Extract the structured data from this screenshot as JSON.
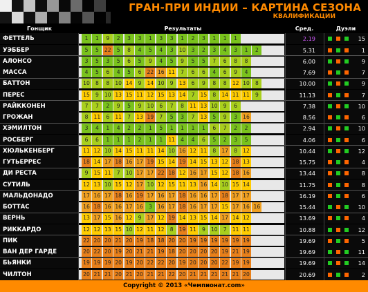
{
  "header": {
    "title": "ГРАН-ПРИ ИНДИИ – КАРТИНА СЕЗОНА",
    "subtitle": "КВАЛИФИКАЦИИ"
  },
  "columns": {
    "driver": "Гонщик",
    "results": "Результаты",
    "avg": "Сред.",
    "duels": "Дуэли"
  },
  "footer": {
    "copyright": "Copyright © 2013 «Чемпионат.com»"
  },
  "colors": {
    "position_scale": [
      "#79c21c",
      "#a9cf1d",
      "#ffcc00",
      "#f0a020",
      "#e8801a"
    ],
    "pole_avg": "#d35bff",
    "duel_win": "#22cc22",
    "duel_loss": "#ff6600",
    "footer_bg": "#ff8a00"
  },
  "chart_data": {
    "type": "table",
    "races_total": 19,
    "drivers": [
      {
        "name": "ФЕТТЕЛЬ",
        "results": [
          1,
          1,
          9,
          2,
          3,
          3,
          1,
          3,
          3,
          1,
          2,
          3,
          1,
          1,
          1
        ],
        "avg": "2.19",
        "duels_wins": "15",
        "pole": true
      },
      {
        "name": "УЭББЕР",
        "results": [
          5,
          5,
          22,
          5,
          8,
          4,
          5,
          4,
          3,
          10,
          3,
          2,
          3,
          4,
          3,
          1,
          2
        ],
        "avg": "5.31",
        "duels_wins": "1",
        "pole": false
      },
      {
        "name": "АЛОНСО",
        "results": [
          3,
          5,
          3,
          5,
          6,
          5,
          9,
          4,
          5,
          9,
          5,
          5,
          7,
          6,
          8,
          8
        ],
        "avg": "6.00",
        "duels_wins": "9",
        "pole": false
      },
      {
        "name": "МАССА",
        "results": [
          4,
          5,
          6,
          4,
          5,
          6,
          22,
          16,
          11,
          7,
          6,
          6,
          4,
          6,
          9,
          4
        ],
        "avg": "7.69",
        "duels_wins": "7",
        "pole": false
      },
      {
        "name": "БАТТОН",
        "results": [
          10,
          8,
          8,
          10,
          14,
          9,
          14,
          10,
          9,
          13,
          6,
          9,
          8,
          8,
          12,
          10,
          8
        ],
        "avg": "10.00",
        "duels_wins": "9",
        "pole": false
      },
      {
        "name": "ПЕРЕС",
        "results": [
          15,
          9,
          10,
          13,
          15,
          11,
          12,
          15,
          13,
          14,
          7,
          15,
          8,
          14,
          11,
          11,
          9
        ],
        "avg": "11.13",
        "duels_wins": "7",
        "pole": false
      },
      {
        "name": "РАЙККОНЕН",
        "results": [
          7,
          7,
          2,
          9,
          5,
          9,
          10,
          6,
          7,
          8,
          11,
          13,
          10,
          9,
          6
        ],
        "avg": "7.38",
        "duels_wins": "10",
        "pole": false
      },
      {
        "name": "ГРОЖАН",
        "results": [
          8,
          11,
          6,
          11,
          7,
          13,
          19,
          7,
          5,
          3,
          7,
          13,
          5,
          9,
          3,
          16
        ],
        "avg": "8.56",
        "duels_wins": "6",
        "pole": false
      },
      {
        "name": "ХЭМИЛТОН",
        "results": [
          3,
          4,
          1,
          4,
          2,
          2,
          1,
          5,
          1,
          1,
          1,
          1,
          6,
          7,
          2,
          2
        ],
        "avg": "2.94",
        "duels_wins": "10",
        "pole": false
      },
      {
        "name": "РОСБЕРГ",
        "results": [
          6,
          6,
          1,
          1,
          1,
          2,
          1,
          1,
          11,
          4,
          4,
          6,
          5,
          2,
          3,
          5
        ],
        "avg": "4.06",
        "duels_wins": "6",
        "pole": false
      },
      {
        "name": "ХЮЛЬКЕНБЕРГ",
        "results": [
          11,
          12,
          10,
          14,
          15,
          11,
          11,
          14,
          10,
          16,
          12,
          11,
          8,
          17,
          8,
          12
        ],
        "avg": "10.44",
        "duels_wins": "12",
        "pole": false
      },
      {
        "name": "ГУТЬЕРРЕС",
        "results": [
          18,
          14,
          17,
          18,
          16,
          17,
          19,
          15,
          14,
          19,
          14,
          15,
          13,
          12,
          18,
          13
        ],
        "avg": "15.75",
        "duels_wins": "4",
        "pole": false
      },
      {
        "name": "ДИ РЕСТА",
        "results": [
          9,
          15,
          11,
          7,
          10,
          17,
          17,
          22,
          18,
          12,
          16,
          17,
          15,
          12,
          18,
          16
        ],
        "avg": "13.44",
        "duels_wins": "8",
        "pole": false
      },
      {
        "name": "СУТИЛЬ",
        "results": [
          12,
          13,
          10,
          15,
          12,
          17,
          10,
          12,
          15,
          11,
          13,
          16,
          14,
          10,
          15,
          14
        ],
        "avg": "11.75",
        "duels_wins": "8",
        "pole": false
      },
      {
        "name": "МАЛЬДОНАДО",
        "results": [
          17,
          16,
          17,
          18,
          16,
          19,
          17,
          16,
          17,
          18,
          16,
          16,
          17,
          18,
          17,
          17
        ],
        "avg": "16.19",
        "duels_wins": "6",
        "pole": false
      },
      {
        "name": "БОТТАС",
        "results": [
          16,
          18,
          16,
          16,
          17,
          16,
          3,
          16,
          17,
          18,
          16,
          17,
          17,
          15,
          17,
          16,
          16
        ],
        "avg": "15.44",
        "duels_wins": "10",
        "pole": false
      },
      {
        "name": "ВЕРНЬ",
        "results": [
          13,
          17,
          15,
          16,
          12,
          9,
          17,
          12,
          19,
          14,
          13,
          15,
          14,
          17,
          14,
          12
        ],
        "avg": "13.69",
        "duels_wins": "4",
        "pole": false
      },
      {
        "name": "РИККАРДО",
        "results": [
          12,
          12,
          13,
          15,
          10,
          12,
          11,
          12,
          8,
          19,
          11,
          9,
          10,
          7,
          11,
          11
        ],
        "avg": "10.88",
        "duels_wins": "12",
        "pole": false
      },
      {
        "name": "ПИК",
        "results": [
          22,
          20,
          20,
          21,
          20,
          19,
          18,
          18,
          20,
          20,
          19,
          19,
          19,
          19,
          19,
          19
        ],
        "avg": "19.69",
        "duels_wins": "5",
        "pole": false
      },
      {
        "name": "ВАН ДЕР ГАРДЕ",
        "results": [
          20,
          22,
          20,
          19,
          20,
          21,
          21,
          19,
          18,
          20,
          20,
          20,
          20,
          19,
          21,
          19
        ],
        "avg": "19.69",
        "duels_wins": "11",
        "pole": false
      },
      {
        "name": "БЬЯНКИ",
        "results": [
          19,
          19,
          19,
          20,
          19,
          20,
          22,
          22,
          20,
          19,
          20,
          20,
          20,
          22,
          19,
          19
        ],
        "avg": "19.69",
        "duels_wins": "14",
        "pole": false
      },
      {
        "name": "ЧИЛТОН",
        "results": [
          20,
          21,
          21,
          20,
          21,
          20,
          21,
          21,
          22,
          20,
          21,
          21,
          21,
          21,
          21,
          20
        ],
        "avg": "20.69",
        "duels_wins": "2",
        "pole": false
      }
    ]
  }
}
